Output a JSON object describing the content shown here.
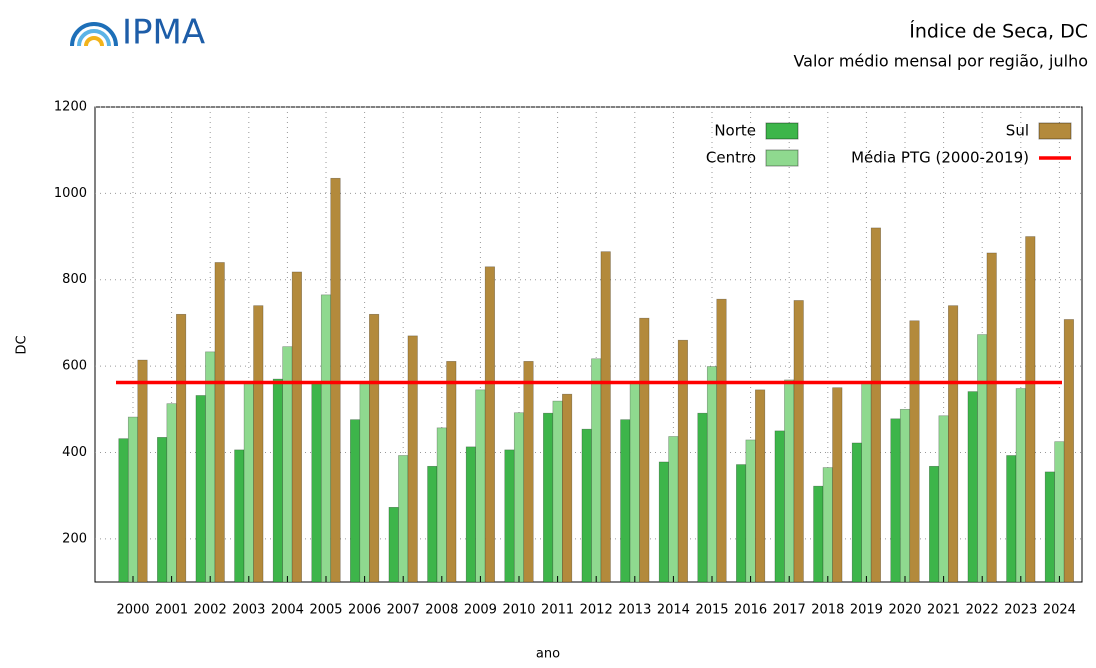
{
  "logo": "IPMA",
  "chart_data": {
    "type": "bar",
    "title": "Índice de Seca, DC",
    "subtitle": "Valor médio mensal por região, julho",
    "x_label": "ano",
    "y_label": "DC",
    "categories": [
      "2000",
      "2001",
      "2002",
      "2003",
      "2004",
      "2005",
      "2006",
      "2007",
      "2008",
      "2009",
      "2010",
      "2011",
      "2012",
      "2013",
      "2014",
      "2015",
      "2016",
      "2017",
      "2018",
      "2019",
      "2020",
      "2021",
      "2022",
      "2023",
      "2024"
    ],
    "series": [
      {
        "name": "Norte",
        "color": "#3db54a",
        "values": [
          432,
          435,
          532,
          406,
          570,
          560,
          476,
          273,
          368,
          413,
          406,
          491,
          454,
          476,
          378,
          491,
          372,
          450,
          322,
          422,
          478,
          368,
          541,
          393,
          355
        ]
      },
      {
        "name": "Centro",
        "color": "#8fd98f",
        "values": [
          482,
          513,
          633,
          560,
          645,
          765,
          562,
          393,
          457,
          545,
          492,
          519,
          617,
          562,
          437,
          599,
          429,
          568,
          365,
          562,
          500,
          485,
          673,
          548,
          425
        ]
      },
      {
        "name": "Sul",
        "color": "#b38a3c",
        "values": [
          614,
          720,
          840,
          740,
          818,
          1035,
          720,
          670,
          611,
          830,
          611,
          535,
          865,
          711,
          660,
          755,
          545,
          752,
          550,
          920,
          705,
          740,
          862,
          900,
          708
        ]
      }
    ],
    "mean_line": {
      "name": "Média PTG (2000-2019)",
      "value": 562,
      "color": "#ff0000"
    },
    "ylim": [
      100,
      1200
    ],
    "yticks": [
      200,
      400,
      600,
      800,
      1000,
      1200
    ],
    "grid": true
  }
}
